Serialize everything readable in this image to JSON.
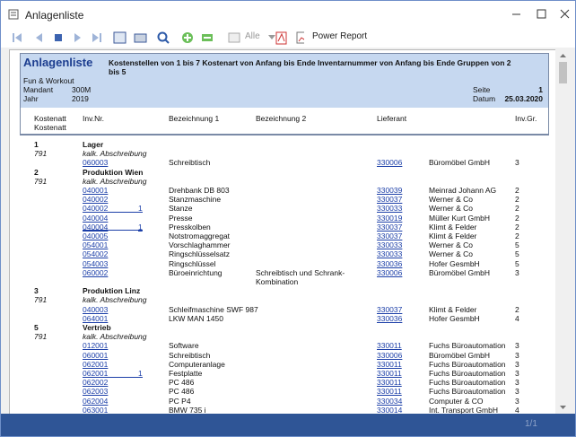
{
  "window": {
    "title": "Anlagenliste"
  },
  "toolbar": {
    "filter": "Alle",
    "power_report": "Power Report"
  },
  "report": {
    "title": "Anlagenliste",
    "criteria": "Kostenstellen von 1 bis 7 Kostenart von Anfang bis Ende Inventarnummer von Anfang bis Ende Gruppen von 2 bis 5",
    "company": "Fun & Workout",
    "mandant_label": "Mandant",
    "mandant": "300M",
    "jahr_label": "Jahr",
    "jahr": "2019",
    "seite_label": "Seite",
    "seite": "1",
    "datum_label": "Datum",
    "datum": "25.03.2020",
    "columns": {
      "kst": "Kostenatt",
      "kst2": "Kostenatt",
      "inv": "Inv.Nr.",
      "bez1": "Bezeichnung 1",
      "bez2": "Bezeichnung 2",
      "lief": "Lieferant",
      "gr": "Inv.Gr."
    },
    "groups": [
      {
        "kst": "1",
        "name": "Lager",
        "kostenart": "791",
        "kostenart_name": "kalk. Abschreibung",
        "rows": [
          {
            "inv": "060003",
            "bez1": "Schreibtisch",
            "lief_nr": "330006",
            "lief": "Büromöbel GmbH",
            "gr": "3"
          }
        ]
      },
      {
        "kst": "2",
        "name": "Produktion Wien",
        "kostenart": "791",
        "kostenart_name": "kalk. Abschreibung",
        "rows": [
          {
            "inv": "040001",
            "bez1": "Drehbank DB 803",
            "lief_nr": "330039",
            "lief": "Meinrad Johann AG",
            "gr": "2"
          },
          {
            "inv": "040002",
            "bez1": "Stanzmaschine",
            "lief_nr": "330037",
            "lief": "Werner & Co",
            "gr": "2"
          },
          {
            "inv": "040002",
            "sub": "1",
            "bez1": "Stanze",
            "lief_nr": "330033",
            "lief": "Werner & Co",
            "gr": "2"
          },
          {
            "inv": "040004",
            "bez1": "Presse",
            "lief_nr": "330019",
            "lief": "Müller Kurt GmbH",
            "gr": "2"
          },
          {
            "inv": "040004",
            "sub": "1",
            "bez1": "Presskolben",
            "lief_nr": "330037",
            "lief": "Klimt & Felder",
            "gr": "2"
          },
          {
            "inv": "040005",
            "bez1": "Notstromaggregat",
            "lief_nr": "330037",
            "lief": "Klimt & Felder",
            "gr": "2"
          },
          {
            "inv": "054001",
            "bez1": "Vorschlaghammer",
            "lief_nr": "330033",
            "lief": "Werner & Co",
            "gr": "5"
          },
          {
            "inv": "054002",
            "bez1": "Ringschlüsselsatz",
            "lief_nr": "330033",
            "lief": "Werner & Co",
            "gr": "5"
          },
          {
            "inv": "054003",
            "bez1": "Ringschlüssel",
            "lief_nr": "330036",
            "lief": "Hofer GesmbH",
            "gr": "5"
          },
          {
            "inv": "060002",
            "bez1": "Büroeinrichtung",
            "bez2": "Schreibtisch und Schrank-Kombination",
            "lief_nr": "330006",
            "lief": "Büromöbel GmbH",
            "gr": "3"
          }
        ]
      },
      {
        "kst": "3",
        "name": "Produktion Linz",
        "kostenart": "791",
        "kostenart_name": "kalk. Abschreibung",
        "rows": [
          {
            "inv": "040003",
            "bez1": "Schleifmaschine SWF 987",
            "lief_nr": "330037",
            "lief": "Klimt & Felder",
            "gr": "2"
          },
          {
            "inv": "064001",
            "bez1": "LKW MAN 1450",
            "lief_nr": "330036",
            "lief": "Hofer GesmbH",
            "gr": "4"
          }
        ]
      },
      {
        "kst": "5",
        "name": "Vertrieb",
        "kostenart": "791",
        "kostenart_name": "kalk. Abschreibung",
        "rows": [
          {
            "inv": "012001",
            "bez1": "Software",
            "lief_nr": "330011",
            "lief": "Fuchs Büroautomation",
            "gr": "3"
          },
          {
            "inv": "060001",
            "bez1": "Schreibtisch",
            "lief_nr": "330006",
            "lief": "Büromöbel GmbH",
            "gr": "3"
          },
          {
            "inv": "062001",
            "bez1": "Computeranlage",
            "lief_nr": "330011",
            "lief": "Fuchs Büroautomation",
            "gr": "3"
          },
          {
            "inv": "062001",
            "sub": "1",
            "bez1": "Festplatte",
            "lief_nr": "330011",
            "lief": "Fuchs Büroautomation",
            "gr": "3"
          },
          {
            "inv": "062002",
            "bez1": "PC 486",
            "lief_nr": "330011",
            "lief": "Fuchs Büroautomation",
            "gr": "3"
          },
          {
            "inv": "062003",
            "bez1": "PC 486",
            "lief_nr": "330011",
            "lief": "Fuchs Büroautomation",
            "gr": "3"
          },
          {
            "inv": "062004",
            "bez1": "PC P4",
            "lief_nr": "330034",
            "lief": "Computer & CO",
            "gr": "3"
          },
          {
            "inv": "063001",
            "bez1": "BMW 735 i",
            "lief_nr": "330014",
            "lief": "Int. Transport GmbH",
            "gr": "4"
          }
        ]
      }
    ]
  },
  "status": {
    "page": "1/1"
  }
}
